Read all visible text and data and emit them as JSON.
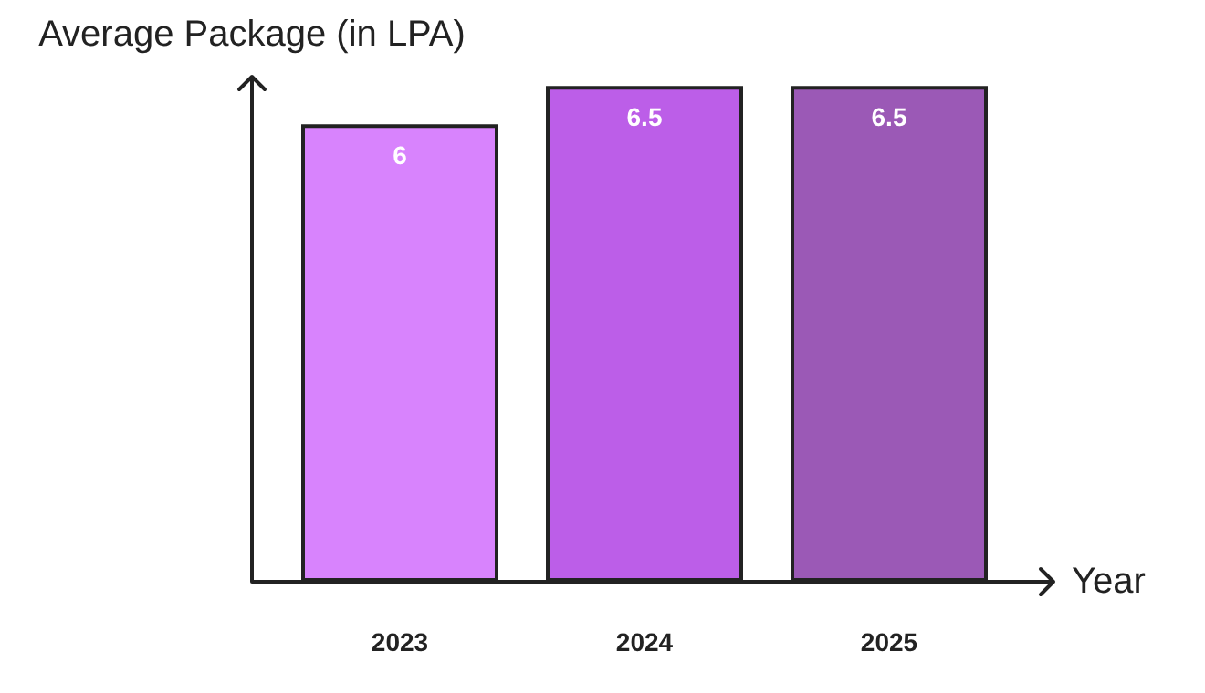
{
  "chart_data": {
    "type": "bar",
    "xlabel": "Year",
    "ylabel": "Average Package (in LPA)",
    "categories": [
      "2023",
      "2024",
      "2025"
    ],
    "values": [
      6,
      6.5,
      6.5
    ],
    "colors": [
      "#d883fd",
      "#bc5ee8",
      "#9b59b6"
    ],
    "ylim": [
      0,
      6.6
    ],
    "data_labels": true,
    "tick_labels": "x",
    "grid": false
  }
}
